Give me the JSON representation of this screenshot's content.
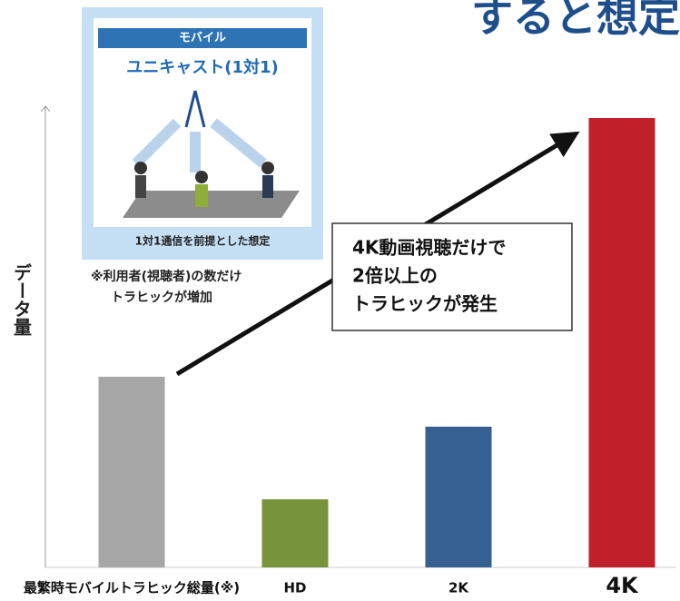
{
  "chart_data": {
    "type": "bar",
    "title": "すると想定",
    "y_label": "データ量",
    "categories": [
      "最繁時モバイルトラヒック総量(※)",
      "HD",
      "2K",
      "4K"
    ],
    "values": [
      42,
      15,
      31,
      99
    ],
    "colors": [
      "#a6a6a6",
      "#77933c",
      "#376092",
      "#c0202a"
    ],
    "ylim": [
      0,
      100
    ],
    "inset": {
      "header": "モバイル",
      "subtitle": "ユニキャスト(1対1)",
      "caption": "1対1通信を前提とした想定"
    },
    "note": [
      "※利用者(視聴者)の数だけ",
      "トラヒックが増加"
    ],
    "callout": [
      "4K動画視聴だけで",
      "2倍以上の",
      "トラヒックが発生"
    ]
  }
}
